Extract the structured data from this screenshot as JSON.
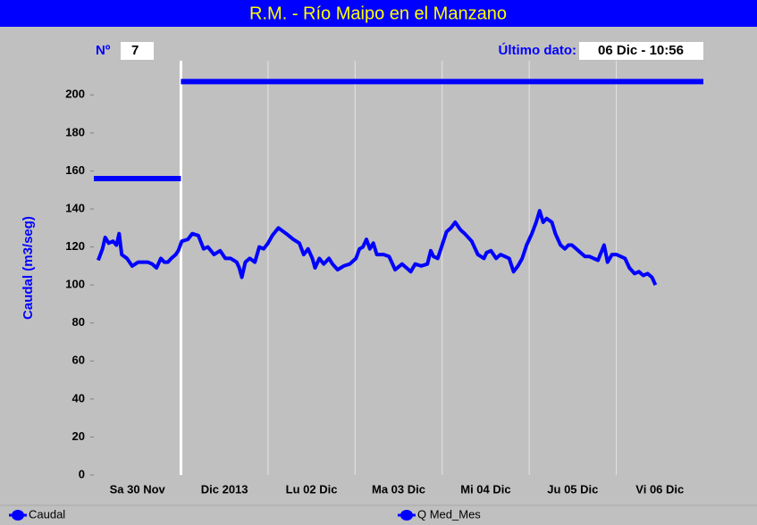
{
  "chart_data": {
    "type": "line",
    "title": "R.M. - Río Maipo en el Manzano",
    "number_label": "Nº",
    "number": 7,
    "last_data_label": "Último dato:",
    "last_data": "06 Dic - 10:56",
    "y_label": "Caudal (m3/seg)",
    "xlim": [
      0,
      7
    ],
    "xticks": [
      {
        "value": 0,
        "label": "Sa 30 Nov"
      },
      {
        "value": 1,
        "label": "Dic 2013"
      },
      {
        "value": 2,
        "label": "Lu 02 Dic"
      },
      {
        "value": 3,
        "label": "Ma 03 Dic"
      },
      {
        "value": 4,
        "label": "Mi 04 Dic"
      },
      {
        "value": 5,
        "label": "Ju 05 Dic"
      },
      {
        "value": 6,
        "label": "Vi 06 Dic"
      }
    ],
    "month_boundary": 1,
    "ylim": [
      0,
      218
    ],
    "yticks": [
      0,
      20,
      40,
      60,
      80,
      100,
      120,
      140,
      160,
      180,
      200
    ],
    "grid": true,
    "series": [
      {
        "name": "Caudal",
        "color": "#0000ff",
        "x": [
          0.05,
          0.1,
          0.13,
          0.17,
          0.22,
          0.26,
          0.29,
          0.32,
          0.38,
          0.44,
          0.51,
          0.56,
          0.62,
          0.67,
          0.72,
          0.77,
          0.81,
          0.85,
          0.89,
          0.94,
          0.97,
          1.01,
          1.08,
          1.13,
          1.2,
          1.26,
          1.31,
          1.38,
          1.45,
          1.51,
          1.57,
          1.64,
          1.67,
          1.7,
          1.74,
          1.79,
          1.85,
          1.9,
          1.95,
          2.0,
          2.05,
          2.12,
          2.21,
          2.29,
          2.36,
          2.41,
          2.46,
          2.51,
          2.54,
          2.59,
          2.64,
          2.7,
          2.74,
          2.8,
          2.87,
          2.94,
          3.01,
          3.05,
          3.09,
          3.13,
          3.17,
          3.21,
          3.25,
          3.33,
          3.39,
          3.46,
          3.54,
          3.59,
          3.64,
          3.69,
          3.76,
          3.83,
          3.87,
          3.9,
          3.95,
          4.0,
          4.05,
          4.1,
          4.15,
          4.21,
          4.26,
          4.34,
          4.41,
          4.48,
          4.51,
          4.56,
          4.62,
          4.67,
          4.72,
          4.77,
          4.82,
          4.87,
          4.92,
          4.97,
          5.03,
          5.08,
          5.12,
          5.16,
          5.2,
          5.26,
          5.3,
          5.36,
          5.41,
          5.45,
          5.49,
          5.54,
          5.59,
          5.64,
          5.69,
          5.74,
          5.79,
          5.86,
          5.9,
          5.95,
          6.0,
          6.05,
          6.1,
          6.15,
          6.21,
          6.26,
          6.31,
          6.36,
          6.41,
          6.45
        ],
        "values": [
          113,
          119,
          125,
          122,
          123,
          121,
          127,
          116,
          114,
          110,
          112,
          112,
          112,
          111,
          109,
          114,
          112,
          112,
          114,
          116,
          118,
          123,
          124,
          127,
          126,
          119,
          120,
          116,
          118,
          114,
          114,
          112,
          109,
          104,
          112,
          114,
          112,
          120,
          119,
          122,
          126,
          130,
          127,
          124,
          122,
          116,
          119,
          114,
          109,
          114,
          111,
          114,
          111,
          108,
          110,
          111,
          114,
          119,
          120,
          124,
          119,
          122,
          116,
          116,
          115,
          108,
          111,
          109,
          107,
          111,
          110,
          111,
          118,
          115,
          114,
          121,
          128,
          130,
          133,
          129,
          127,
          123,
          116,
          114,
          117,
          118,
          114,
          116,
          115,
          114,
          107,
          110,
          114,
          121,
          127,
          133,
          139,
          133,
          135,
          133,
          127,
          121,
          119,
          121,
          121,
          119,
          117,
          115,
          115,
          114,
          113,
          121,
          112,
          116,
          116,
          115,
          114,
          109,
          106,
          107,
          105,
          106,
          104,
          100
        ],
        "width": 4
      },
      {
        "name": "Q Med_Mes",
        "color": "#0000ff",
        "x": [
          0,
          1,
          1,
          1,
          7
        ],
        "values": [
          156,
          156,
          null,
          207,
          207
        ],
        "width": 6
      }
    ]
  }
}
